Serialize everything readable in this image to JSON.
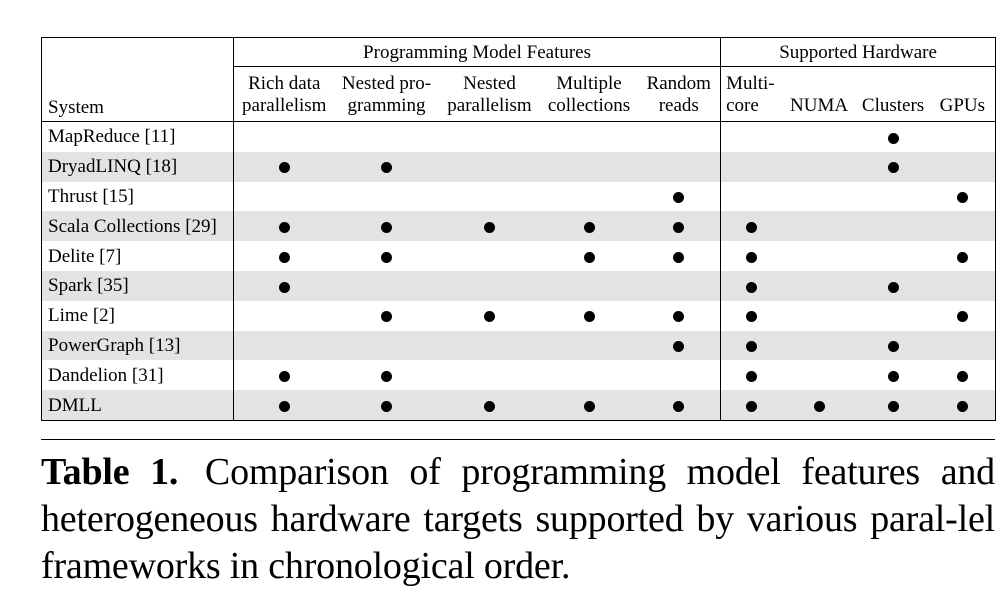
{
  "table": {
    "system_header": "System",
    "group_headers": {
      "programming_model": "Programming Model Features",
      "hardware": "Supported Hardware"
    },
    "feature_headers": [
      {
        "line1": "Rich data",
        "line2": "parallelism"
      },
      {
        "line1": "Nested pro-",
        "line2": "gramming"
      },
      {
        "line1": "Nested",
        "line2": "parallelism"
      },
      {
        "line1": "Multiple",
        "line2": "collections"
      },
      {
        "line1": "Random",
        "line2": "reads"
      },
      {
        "line1": "Multi-",
        "line2": "core"
      },
      {
        "line1": "",
        "line2": "NUMA"
      },
      {
        "line1": "",
        "line2": "Clusters"
      },
      {
        "line1": "",
        "line2": "GPUs"
      }
    ],
    "rows": [
      {
        "system": "MapReduce [11]",
        "marks": [
          0,
          0,
          0,
          0,
          0,
          0,
          0,
          1,
          0
        ]
      },
      {
        "system": "DryadLINQ [18]",
        "marks": [
          1,
          1,
          0,
          0,
          0,
          0,
          0,
          1,
          0
        ]
      },
      {
        "system": "Thrust [15]",
        "marks": [
          0,
          0,
          0,
          0,
          1,
          0,
          0,
          0,
          1
        ]
      },
      {
        "system": "Scala Collections [29]",
        "marks": [
          1,
          1,
          1,
          1,
          1,
          1,
          0,
          0,
          0
        ]
      },
      {
        "system": "Delite [7]",
        "marks": [
          1,
          1,
          0,
          1,
          1,
          1,
          0,
          0,
          1
        ]
      },
      {
        "system": "Spark [35]",
        "marks": [
          1,
          0,
          0,
          0,
          0,
          1,
          0,
          1,
          0
        ]
      },
      {
        "system": "Lime [2]",
        "marks": [
          0,
          1,
          1,
          1,
          1,
          1,
          0,
          0,
          1
        ]
      },
      {
        "system": "PowerGraph [13]",
        "marks": [
          0,
          0,
          0,
          0,
          1,
          1,
          0,
          1,
          0
        ]
      },
      {
        "system": "Dandelion [31]",
        "marks": [
          1,
          1,
          0,
          0,
          0,
          1,
          0,
          1,
          1
        ]
      },
      {
        "system": "DMLL",
        "marks": [
          1,
          1,
          1,
          1,
          1,
          1,
          1,
          1,
          1
        ]
      }
    ]
  },
  "caption": {
    "label": "Table 1.",
    "text": "Comparison of programming model features and heterogeneous hardware targets supported by various paral-lel frameworks in chronological order."
  }
}
